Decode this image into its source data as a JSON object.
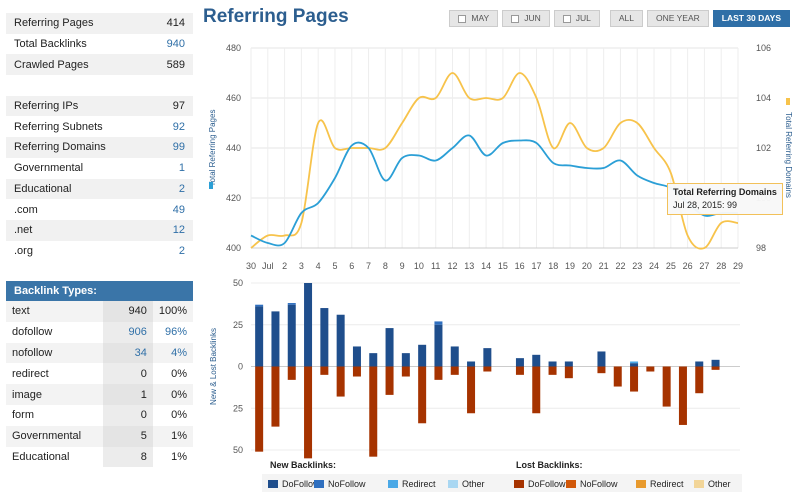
{
  "stats1": [
    {
      "label": "Referring Pages",
      "value": "414",
      "blue": false
    },
    {
      "label": "Total Backlinks",
      "value": "940",
      "blue": true
    },
    {
      "label": "Crawled Pages",
      "value": "589",
      "blue": false
    },
    {
      "label": "",
      "value": "",
      "blue": false
    },
    {
      "label": "Referring IPs",
      "value": "97",
      "blue": false
    },
    {
      "label": "Referring Subnets",
      "value": "92",
      "blue": true
    },
    {
      "label": "Referring Domains",
      "value": "99",
      "blue": true
    },
    {
      "label": "Governmental",
      "value": "1",
      "blue": true
    },
    {
      "label": "Educational",
      "value": "2",
      "blue": true
    },
    {
      "label": ".com",
      "value": "49",
      "blue": true
    },
    {
      "label": ".net",
      "value": "12",
      "blue": true
    },
    {
      "label": ".org",
      "value": "2",
      "blue": true
    }
  ],
  "backlink_types": {
    "header": "Backlink Types:",
    "rows": [
      {
        "label": "text",
        "num": "940",
        "pct": "100%",
        "blue": false
      },
      {
        "label": "dofollow",
        "num": "906",
        "pct": "96%",
        "blue": true
      },
      {
        "label": "nofollow",
        "num": "34",
        "pct": "4%",
        "blue": true
      },
      {
        "label": "redirect",
        "num": "0",
        "pct": "0%",
        "blue": false
      },
      {
        "label": "image",
        "num": "1",
        "pct": "0%",
        "blue": false
      },
      {
        "label": "form",
        "num": "0",
        "pct": "0%",
        "blue": false
      },
      {
        "label": "Governmental",
        "num": "5",
        "pct": "1%",
        "blue": false
      },
      {
        "label": "Educational",
        "num": "8",
        "pct": "1%",
        "blue": false
      }
    ]
  },
  "title": "Referring Pages",
  "buttons": [
    {
      "label": "MAY",
      "check": true,
      "active": false
    },
    {
      "label": "JUN",
      "check": true,
      "active": false
    },
    {
      "label": "JUL",
      "check": true,
      "active": false
    },
    {
      "label": "ALL",
      "check": false,
      "active": false,
      "sep": true
    },
    {
      "label": "ONE YEAR",
      "check": false,
      "active": false
    },
    {
      "label": "LAST 30 DAYS",
      "check": false,
      "active": true
    }
  ],
  "tooltip": {
    "title": "Total Referring Domains",
    "text": "Jul 28, 2015: 99"
  },
  "colors": {
    "pages": "#2b9fd6",
    "domains": "#f7c34b",
    "dofollow_new": "#1f4e8c",
    "nofollow_new": "#2f6fbf",
    "redirect_new": "#4aa8e6",
    "other_new": "#a9d7f2",
    "dofollow_lost": "#a63300",
    "nofollow_lost": "#d1580a",
    "redirect_lost": "#e89a2d",
    "other_lost": "#f2d598"
  },
  "chart_data": [
    {
      "type": "line",
      "x": [
        "30",
        "Jul",
        "2",
        "3",
        "4",
        "5",
        "6",
        "7",
        "8",
        "9",
        "10",
        "11",
        "12",
        "13",
        "14",
        "15",
        "16",
        "17",
        "18",
        "19",
        "20",
        "21",
        "22",
        "23",
        "24",
        "25",
        "26",
        "27",
        "28",
        "29"
      ],
      "series": [
        {
          "name": "Total Referring Pages",
          "axis": "left",
          "values": [
            405,
            402,
            402,
            414,
            418,
            428,
            441,
            440,
            427,
            436,
            437,
            435,
            440,
            445,
            437,
            442,
            443,
            442,
            434,
            433,
            432,
            432,
            435,
            429,
            426,
            424,
            418,
            413,
            414,
            414
          ]
        },
        {
          "name": "Total Referring Domains",
          "axis": "right",
          "values": [
            98,
            98.5,
            98.5,
            99,
            103,
            102,
            102,
            102,
            102,
            103,
            104,
            104,
            105,
            104,
            104,
            104,
            105,
            104,
            102,
            103,
            102,
            102,
            103,
            103,
            102,
            101,
            98.5,
            98,
            99,
            99
          ]
        }
      ],
      "ylabel": "Total Referring Pages",
      "y2label": "Total Referring Domains",
      "ylim": [
        400,
        480
      ],
      "y2lim": [
        98,
        106
      ],
      "yticks": [
        "400",
        "420",
        "440",
        "460",
        "480"
      ],
      "y2ticks": [
        "98",
        "100",
        "102",
        "104",
        "106"
      ]
    },
    {
      "type": "bar",
      "categories": [
        "30",
        "Jul",
        "2",
        "3",
        "4",
        "5",
        "6",
        "7",
        "8",
        "9",
        "10",
        "11",
        "12",
        "13",
        "14",
        "15",
        "16",
        "17",
        "18",
        "19",
        "20",
        "21",
        "22",
        "23",
        "24",
        "25",
        "26",
        "27",
        "28",
        "29"
      ],
      "ylabel": "New & Lost Backlinks",
      "ylim": [
        -50,
        50
      ],
      "yticks": [
        "50",
        "25",
        "0",
        "25",
        "50"
      ],
      "new_title": "New Backlinks:",
      "lost_title": "Lost Backlinks:",
      "series": [
        {
          "name": "DoFollow",
          "group": "new",
          "values": [
            36,
            33,
            37,
            50,
            35,
            31,
            12,
            8,
            23,
            8,
            13,
            25,
            12,
            3,
            11,
            0,
            5,
            7,
            3,
            3,
            0,
            9,
            0,
            2,
            0,
            0,
            0,
            3,
            4,
            0
          ]
        },
        {
          "name": "NoFollow",
          "group": "new",
          "values": [
            1,
            0,
            1,
            0,
            0,
            0,
            0,
            0,
            0,
            0,
            0,
            2,
            0,
            0,
            0,
            0,
            0,
            0,
            0,
            0,
            0,
            0,
            0,
            0,
            0,
            0,
            0,
            0,
            0,
            0
          ]
        },
        {
          "name": "Redirect",
          "group": "new",
          "values": [
            0,
            0,
            0,
            0,
            0,
            0,
            0,
            0,
            0,
            0,
            0,
            0,
            0,
            0,
            0,
            0,
            0,
            0,
            0,
            0,
            0,
            0,
            0,
            1,
            0,
            0,
            0,
            0,
            0,
            0
          ]
        },
        {
          "name": "Other",
          "group": "new",
          "values": [
            0,
            0,
            0,
            0,
            0,
            0,
            0,
            0,
            0,
            0,
            0,
            0,
            0,
            0,
            0,
            0,
            0,
            0,
            0,
            0,
            0,
            0,
            0,
            0,
            0,
            0,
            0,
            0,
            0,
            0
          ]
        },
        {
          "name": "DoFollow",
          "group": "lost",
          "values": [
            51,
            36,
            8,
            55,
            5,
            18,
            6,
            54,
            17,
            6,
            34,
            8,
            5,
            28,
            3,
            0,
            5,
            28,
            5,
            7,
            0,
            4,
            12,
            15,
            3,
            24,
            35,
            16,
            2,
            0
          ]
        },
        {
          "name": "NoFollow",
          "group": "lost",
          "values": [
            0,
            0,
            0,
            0,
            0,
            0,
            0,
            0,
            0,
            0,
            0,
            0,
            0,
            0,
            0,
            0,
            0,
            0,
            0,
            0,
            0,
            0,
            0,
            0,
            0,
            0,
            0,
            0,
            0,
            0
          ]
        },
        {
          "name": "Redirect",
          "group": "lost",
          "values": [
            0,
            0,
            0,
            0,
            0,
            0,
            0,
            0,
            0,
            0,
            0,
            0,
            0,
            0,
            0,
            0,
            0,
            0,
            0,
            0,
            0,
            0,
            0,
            0,
            0,
            0,
            0,
            0,
            0,
            0
          ]
        },
        {
          "name": "Other",
          "group": "lost",
          "values": [
            0,
            0,
            0,
            0,
            0,
            0,
            0,
            0,
            0,
            0,
            0,
            0,
            0,
            0,
            0,
            0,
            0,
            0,
            0,
            0,
            0,
            0,
            0,
            0,
            0,
            0,
            0,
            0,
            0,
            0
          ]
        }
      ]
    }
  ],
  "legend": {
    "new_items": [
      {
        "name": "DoFollow",
        "color": "#1f4e8c"
      },
      {
        "name": "NoFollow",
        "color": "#2f6fbf"
      },
      {
        "name": "Redirect",
        "color": "#4aa8e6"
      },
      {
        "name": "Other",
        "color": "#a9d7f2"
      }
    ],
    "lost_items": [
      {
        "name": "DoFollow",
        "color": "#a63300"
      },
      {
        "name": "NoFollow",
        "color": "#d1580a"
      },
      {
        "name": "Redirect",
        "color": "#e89a2d"
      },
      {
        "name": "Other",
        "color": "#f2d598"
      }
    ]
  }
}
